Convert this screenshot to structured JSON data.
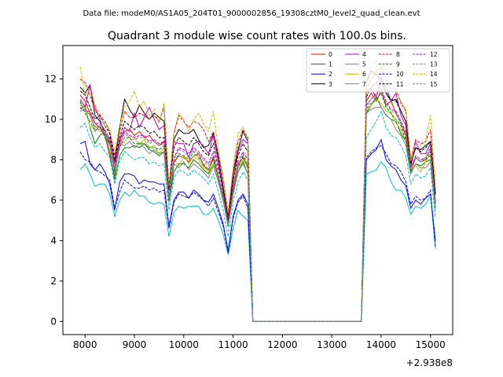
{
  "header": {
    "data_file": "Data file: modeM0/AS1A05_204T01_9000002856_19308cztM0_level2_quad_clean.evt"
  },
  "chart_data": {
    "type": "line",
    "title": "Quadrant 3 module wise count rates with 100.0s bins.",
    "xlabel": "",
    "ylabel": "",
    "x_offset_label": "+2.938e8",
    "xlim": [
      7550,
      15450
    ],
    "ylim": [
      -0.65,
      13.65
    ],
    "xticks": [
      8000,
      9000,
      10000,
      11000,
      12000,
      13000,
      14000,
      15000
    ],
    "yticks": [
      0,
      2,
      4,
      6,
      8,
      10,
      12
    ],
    "legend_position": "top-right",
    "legend_columns": 4,
    "x": [
      7900,
      8000,
      8100,
      8200,
      8300,
      8400,
      8500,
      8600,
      8700,
      8800,
      8900,
      9000,
      9100,
      9200,
      9300,
      9400,
      9500,
      9600,
      9700,
      9800,
      9900,
      10000,
      10100,
      10200,
      10300,
      10400,
      10500,
      10600,
      10700,
      10800,
      10900,
      11000,
      11100,
      11200,
      11300,
      11400,
      11500,
      11600,
      11700,
      11800,
      11900,
      12000,
      12100,
      12200,
      12300,
      12400,
      12500,
      12600,
      12700,
      12800,
      12900,
      13000,
      13100,
      13200,
      13300,
      13400,
      13500,
      13600,
      13700,
      13800,
      13900,
      14000,
      14100,
      14200,
      14300,
      14400,
      14500,
      14600,
      14700,
      14800,
      14900,
      15000,
      15100
    ],
    "gap_range": [
      11500,
      13600
    ],
    "series": [
      {
        "name": "0",
        "color": "#ff0000",
        "dash": false,
        "active": [
          11.2,
          10.9,
          10.3,
          9.8,
          9.6,
          9.2,
          8.2,
          7.2,
          9.1,
          9.4,
          9.5,
          9.2,
          9.4,
          9.1,
          9.2,
          8.9,
          8.7,
          8.9,
          6.0,
          7.9,
          8.2,
          8.1,
          7.9,
          8.2,
          8.3,
          7.7,
          7.5,
          8.1,
          7.1,
          6.1,
          5.0,
          6.6,
          7.8,
          8.1,
          7.7
        ],
        "tail": [
          10.9,
          11.3,
          10.9,
          11.4,
          10.7,
          10.9,
          10.3,
          9.8,
          9.2,
          7.4,
          8.1,
          7.9,
          8.0,
          8.2,
          5.9
        ]
      },
      {
        "name": "1",
        "color": "#008000",
        "dash": false,
        "active": [
          10.5,
          10.7,
          9.6,
          8.8,
          9.2,
          9.4,
          8.5,
          7.0,
          8.2,
          8.6,
          8.6,
          8.7,
          8.6,
          8.8,
          8.5,
          8.4,
          8.2,
          8.4,
          5.9,
          7.4,
          7.8,
          7.8,
          7.6,
          8.0,
          7.8,
          7.5,
          7.3,
          7.8,
          6.9,
          6.0,
          4.7,
          6.3,
          7.4,
          7.9,
          7.3
        ],
        "tail": [
          10.3,
          10.7,
          11.1,
          10.6,
          10.2,
          10.0,
          9.9,
          9.3,
          8.9,
          7.3,
          7.8,
          7.7,
          7.9,
          8.0,
          5.6
        ]
      },
      {
        "name": "2",
        "color": "#0000ff",
        "dash": false,
        "active": [
          8.8,
          8.9,
          7.8,
          7.5,
          7.8,
          7.4,
          6.8,
          5.5,
          6.9,
          7.3,
          7.3,
          7.2,
          6.8,
          7.0,
          6.9,
          6.9,
          6.8,
          6.8,
          4.7,
          6.0,
          6.4,
          6.4,
          6.1,
          6.5,
          6.3,
          6.0,
          5.9,
          6.3,
          5.6,
          4.8,
          3.5,
          5.2,
          6.0,
          6.3,
          5.8
        ],
        "tail": [
          8.0,
          8.3,
          8.5,
          9.0,
          8.0,
          7.7,
          7.5,
          7.0,
          6.7,
          5.6,
          6.0,
          5.8,
          6.1,
          6.3,
          4.0
        ]
      },
      {
        "name": "3",
        "color": "#000000",
        "dash": false,
        "active": [
          11.6,
          11.3,
          11.7,
          10.2,
          9.9,
          9.4,
          8.8,
          7.9,
          9.6,
          11.0,
          10.5,
          10.1,
          10.7,
          10.3,
          10.0,
          10.3,
          10.1,
          9.9,
          6.5,
          9.0,
          9.5,
          9.3,
          9.3,
          9.5,
          9.0,
          8.6,
          8.7,
          9.3,
          8.1,
          6.6,
          5.1,
          7.3,
          8.5,
          9.4,
          8.9
        ],
        "tail": [
          11.8,
          12.4,
          12.2,
          12.0,
          11.3,
          10.9,
          11.0,
          10.4,
          9.9,
          7.8,
          8.6,
          8.5,
          8.7,
          8.9,
          6.3
        ]
      },
      {
        "name": "4",
        "color": "#c000c0",
        "dash": false,
        "active": [
          11.0,
          10.6,
          11.7,
          10.6,
          10.0,
          9.2,
          9.1,
          7.8,
          8.9,
          9.6,
          9.4,
          10.3,
          9.6,
          10.1,
          10.6,
          10.0,
          9.5,
          9.7,
          6.7,
          8.9,
          8.8,
          8.8,
          8.1,
          8.8,
          8.9,
          8.7,
          8.3,
          9.2,
          7.9,
          6.4,
          5.1,
          6.9,
          8.4,
          9.0,
          8.8
        ],
        "tail": [
          11.4,
          11.5,
          11.1,
          12.0,
          11.6,
          10.9,
          11.3,
          10.2,
          9.7,
          7.6,
          8.9,
          8.3,
          8.3,
          8.8,
          5.9
        ]
      },
      {
        "name": "5",
        "color": "#00bfbf",
        "dash": false,
        "active": [
          7.5,
          7.8,
          7.3,
          6.7,
          6.8,
          6.8,
          6.3,
          5.2,
          6.0,
          6.4,
          6.2,
          6.5,
          6.2,
          6.2,
          5.9,
          5.8,
          5.9,
          5.8,
          4.2,
          5.4,
          5.7,
          5.6,
          5.7,
          5.7,
          5.7,
          5.3,
          5.3,
          5.6,
          5.0,
          4.3,
          3.3,
          4.6,
          5.5,
          5.2,
          5.0
        ],
        "tail": [
          7.3,
          7.4,
          7.5,
          7.9,
          7.6,
          6.9,
          6.5,
          6.5,
          6.1,
          5.3,
          5.7,
          5.6,
          5.8,
          6.2,
          3.6
        ]
      },
      {
        "name": "6",
        "color": "#bfbf00",
        "dash": false,
        "active": [
          10.7,
          10.6,
          9.6,
          9.7,
          9.4,
          9.4,
          8.5,
          7.6,
          8.7,
          8.9,
          9.2,
          9.1,
          8.8,
          9.0,
          8.6,
          8.7,
          8.3,
          8.6,
          6.0,
          8.0,
          7.7,
          8.2,
          7.8,
          8.2,
          8.0,
          7.6,
          7.4,
          7.8,
          6.9,
          6.0,
          4.8,
          6.5,
          7.6,
          8.0,
          7.6
        ],
        "tail": [
          10.4,
          10.7,
          11.0,
          10.8,
          10.4,
          10.3,
          9.8,
          9.5,
          8.9,
          7.6,
          7.7,
          7.4,
          7.9,
          8.3,
          5.7
        ]
      },
      {
        "name": "7",
        "color": "#808080",
        "dash": false,
        "active": [
          10.4,
          10.5,
          10.2,
          9.5,
          9.5,
          9.3,
          8.3,
          7.3,
          8.8,
          8.7,
          8.9,
          8.6,
          8.8,
          8.6,
          8.3,
          8.5,
          8.3,
          8.4,
          5.9,
          7.8,
          7.6,
          7.9,
          7.5,
          7.8,
          7.6,
          7.4,
          7.1,
          7.7,
          6.9,
          5.9,
          4.8,
          6.3,
          7.4,
          7.8,
          7.3
        ],
        "tail": [
          10.3,
          10.5,
          10.6,
          10.6,
          10.2,
          10.0,
          9.5,
          9.2,
          8.7,
          7.3,
          7.8,
          7.6,
          7.6,
          7.9,
          5.5
        ]
      },
      {
        "name": "8",
        "color": "#ff0000",
        "dash": true,
        "active": [
          12.0,
          11.8,
          11.2,
          10.4,
          10.2,
          9.9,
          9.4,
          8.2,
          9.4,
          10.4,
          10.1,
          10.1,
          10.3,
          10.2,
          10.0,
          10.2,
          9.9,
          10.6,
          6.6,
          9.3,
          10.2,
          9.9,
          9.6,
          9.9,
          9.8,
          9.5,
          8.9,
          9.4,
          8.3,
          7.0,
          5.3,
          7.4,
          8.9,
          9.5,
          9.1
        ],
        "tail": [
          11.5,
          12.0,
          12.4,
          12.6,
          11.9,
          11.5,
          11.5,
          10.8,
          10.4,
          8.0,
          9.0,
          8.8,
          8.9,
          9.5,
          6.5
        ]
      },
      {
        "name": "9",
        "color": "#008000",
        "dash": true,
        "active": [
          10.9,
          10.3,
          9.9,
          9.4,
          9.7,
          9.1,
          8.8,
          7.4,
          8.6,
          9.1,
          9.1,
          8.8,
          8.8,
          8.8,
          8.6,
          8.6,
          8.5,
          8.7,
          6.0,
          7.8,
          8.3,
          8.2,
          8.0,
          8.4,
          8.1,
          7.8,
          7.5,
          8.0,
          7.1,
          6.2,
          4.9,
          6.4,
          7.6,
          8.2,
          7.6
        ],
        "tail": [
          10.5,
          10.8,
          11.0,
          11.3,
          10.6,
          10.3,
          10.0,
          9.7,
          9.0,
          7.4,
          8.1,
          7.9,
          8.0,
          8.4,
          5.8
        ]
      },
      {
        "name": "10",
        "color": "#0000ff",
        "dash": true,
        "active": [
          8.4,
          8.0,
          7.9,
          7.5,
          7.4,
          7.2,
          7.0,
          5.6,
          6.4,
          7.0,
          6.8,
          6.6,
          6.6,
          6.7,
          6.5,
          6.6,
          6.4,
          6.5,
          4.6,
          5.9,
          6.3,
          6.2,
          6.1,
          6.4,
          6.2,
          6.0,
          5.7,
          6.1,
          5.4,
          4.7,
          3.4,
          5.1,
          5.9,
          6.2,
          5.6
        ],
        "tail": [
          8.1,
          8.4,
          8.6,
          8.7,
          8.3,
          7.8,
          7.7,
          7.4,
          6.9,
          5.8,
          6.2,
          6.0,
          6.1,
          6.5,
          3.7
        ]
      },
      {
        "name": "11",
        "color": "#000000",
        "dash": true,
        "active": [
          11.4,
          11.2,
          10.6,
          10.0,
          10.2,
          9.7,
          9.3,
          8.0,
          9.1,
          9.9,
          9.7,
          9.5,
          9.7,
          9.6,
          9.3,
          9.4,
          9.1,
          9.1,
          6.6,
          8.6,
          9.1,
          8.9,
          8.7,
          9.1,
          8.8,
          8.4,
          8.2,
          8.8,
          7.6,
          6.5,
          5.0,
          7.0,
          8.2,
          8.8,
          8.4
        ],
        "tail": [
          11.1,
          11.6,
          11.8,
          12.1,
          11.3,
          11.0,
          10.9,
          10.4,
          9.9,
          7.8,
          8.6,
          8.4,
          8.6,
          8.9,
          6.2
        ]
      },
      {
        "name": "12",
        "color": "#c000c0",
        "dash": true,
        "active": [
          10.6,
          10.4,
          10.4,
          9.8,
          9.8,
          9.5,
          9.0,
          7.6,
          8.8,
          9.4,
          9.2,
          9.1,
          9.2,
          9.2,
          8.9,
          9.0,
          8.8,
          8.9,
          6.2,
          8.1,
          8.6,
          8.5,
          8.3,
          8.6,
          8.4,
          8.1,
          7.8,
          8.4,
          7.3,
          6.2,
          4.9,
          6.6,
          7.9,
          8.4,
          8.0
        ],
        "tail": [
          10.7,
          11.0,
          11.3,
          11.5,
          10.9,
          10.5,
          10.4,
          9.9,
          9.4,
          7.6,
          8.2,
          8.0,
          8.1,
          8.6,
          5.9
        ]
      },
      {
        "name": "13",
        "color": "#00bfbf",
        "dash": true,
        "active": [
          9.6,
          9.8,
          9.1,
          8.6,
          8.8,
          8.4,
          8.1,
          6.8,
          7.9,
          8.4,
          8.2,
          8.0,
          8.1,
          8.1,
          7.8,
          7.9,
          7.7,
          7.8,
          5.5,
          7.1,
          7.5,
          7.4,
          7.2,
          7.5,
          7.3,
          7.1,
          6.8,
          7.3,
          6.4,
          5.5,
          4.2,
          5.9,
          6.9,
          7.4,
          7.0
        ],
        "tail": [
          9.1,
          9.5,
          9.9,
          10.4,
          9.6,
          9.2,
          9.1,
          8.7,
          8.2,
          6.8,
          7.3,
          7.1,
          7.2,
          7.6,
          5.1
        ]
      },
      {
        "name": "14",
        "color": "#bfbf00",
        "dash": true,
        "active": [
          12.6,
          11.2,
          11.5,
          10.7,
          10.3,
          9.7,
          9.5,
          8.4,
          9.7,
          10.6,
          10.9,
          11.4,
          10.6,
          10.9,
          10.2,
          10.5,
          9.8,
          10.8,
          6.7,
          9.4,
          10.3,
          10.0,
          9.4,
          10.0,
          10.3,
          9.8,
          9.4,
          10.4,
          8.5,
          7.1,
          5.4,
          7.6,
          9.3,
          9.6,
          9.0
        ],
        "tail": [
          11.9,
          12.6,
          12.9,
          12.4,
          12.0,
          11.7,
          11.4,
          10.9,
          10.5,
          8.0,
          8.8,
          8.7,
          8.9,
          10.2,
          6.6
        ]
      },
      {
        "name": "15",
        "color": "#808080",
        "dash": true,
        "active": [
          10.8,
          10.5,
          10.2,
          9.6,
          9.7,
          9.3,
          8.9,
          7.5,
          8.7,
          9.3,
          9.1,
          9.0,
          9.1,
          9.1,
          8.8,
          8.9,
          8.7,
          8.8,
          6.1,
          8.0,
          8.5,
          8.4,
          8.2,
          8.5,
          8.3,
          8.0,
          7.7,
          8.2,
          7.2,
          6.1,
          4.8,
          6.5,
          7.7,
          8.3,
          7.8
        ],
        "tail": [
          10.6,
          11.0,
          11.2,
          11.4,
          10.8,
          10.4,
          10.3,
          9.8,
          9.3,
          7.6,
          8.1,
          7.9,
          8.1,
          8.5,
          5.8
        ]
      }
    ]
  }
}
